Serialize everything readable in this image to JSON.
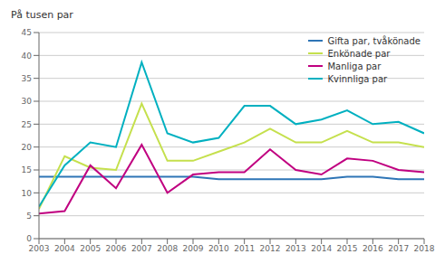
{
  "chart_data": {
    "type": "line",
    "ylabel": "På tusen par",
    "x": [
      2003,
      2004,
      2005,
      2006,
      2007,
      2008,
      2009,
      2010,
      2011,
      2012,
      2013,
      2014,
      2015,
      2016,
      2017,
      2018
    ],
    "xlim": [
      2003,
      2018
    ],
    "xticks": [
      2003,
      2004,
      2005,
      2006,
      2007,
      2008,
      2009,
      2010,
      2011,
      2012,
      2013,
      2014,
      2015,
      2016,
      2017,
      2018
    ],
    "ylim": [
      0,
      45
    ],
    "yticks": [
      0,
      5,
      10,
      15,
      20,
      25,
      30,
      35,
      40,
      45
    ],
    "grid": "y",
    "legend": "upper right",
    "series": [
      {
        "name": "Gifta par, tvåkönade",
        "color": "#2e75b6",
        "values": [
          13.5,
          13.5,
          13.5,
          13.5,
          13.5,
          13.5,
          13.5,
          13.0,
          13.0,
          13.0,
          13.0,
          13.0,
          13.5,
          13.5,
          13.0,
          13.0
        ]
      },
      {
        "name": "Enkönade par",
        "color": "#c5e04d",
        "values": [
          6.5,
          18.0,
          15.5,
          15.0,
          29.5,
          17.0,
          17.0,
          19.0,
          21.0,
          24.0,
          21.0,
          21.0,
          23.5,
          21.0,
          21.0,
          20.0
        ]
      },
      {
        "name": "Manliga par",
        "color": "#c00080",
        "values": [
          5.5,
          6.0,
          16.0,
          11.0,
          20.5,
          10.0,
          14.0,
          14.5,
          14.5,
          19.5,
          15.0,
          14.0,
          17.5,
          17.0,
          15.0,
          14.5
        ]
      },
      {
        "name": "Kvinnliga par",
        "color": "#00b0c0",
        "values": [
          7.0,
          16.0,
          21.0,
          20.0,
          38.5,
          23.0,
          21.0,
          22.0,
          29.0,
          29.0,
          25.0,
          26.0,
          28.0,
          25.0,
          25.5,
          23.0
        ]
      }
    ]
  }
}
